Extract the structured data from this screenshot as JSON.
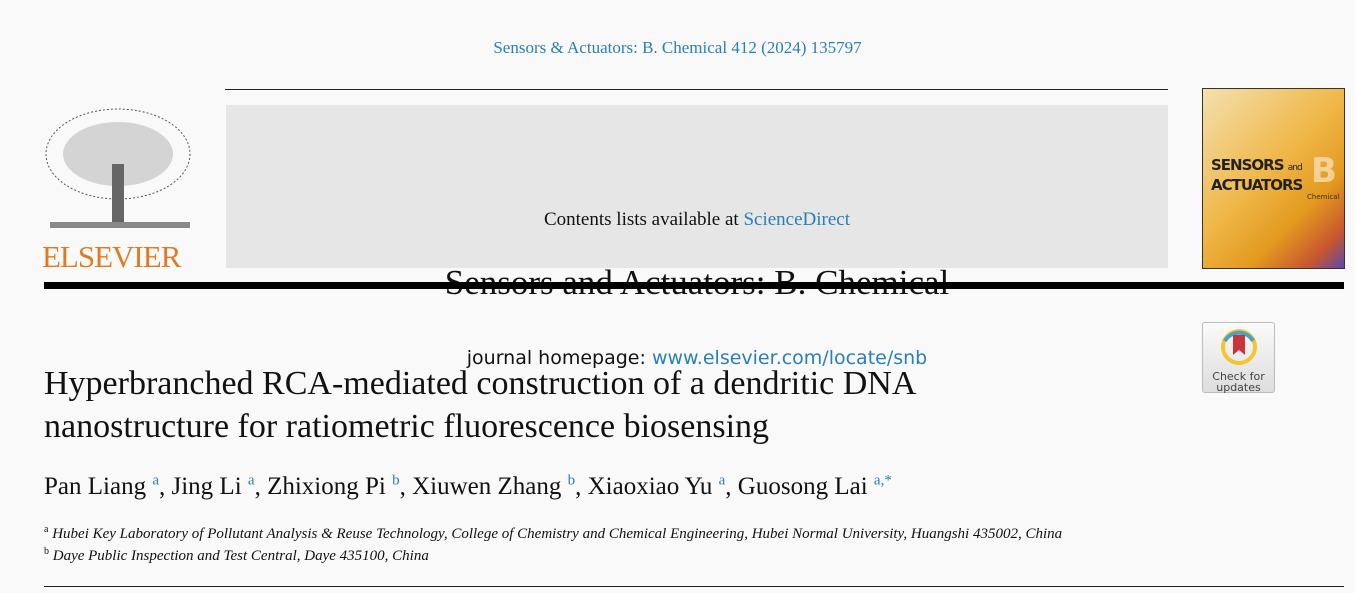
{
  "citation": "Sensors & Actuators: B. Chemical 412 (2024) 135797",
  "publisher_logo": "ELSEVIER",
  "banner": {
    "contents_prefix": "Contents lists available at ",
    "contents_link": "ScienceDirect",
    "journal_name": "Sensors and Actuators: B. Chemical",
    "homepage_prefix": "journal homepage: ",
    "homepage_link": "www.elsevier.com/locate/snb"
  },
  "cover": {
    "line1": "SENSORS",
    "and": "and",
    "line2": "ACTUATORS",
    "letter": "B",
    "sub": "Chemical"
  },
  "crossmark": {
    "line1": "Check for",
    "line2": "updates"
  },
  "title": "Hyperbranched RCA-mediated construction of a dendritic DNA nanostructure for ratiometric fluorescence biosensing",
  "authors": [
    {
      "name": "Pan Liang",
      "sup": "a"
    },
    {
      "name": "Jing Li",
      "sup": "a"
    },
    {
      "name": "Zhixiong Pi",
      "sup": "b"
    },
    {
      "name": "Xiuwen Zhang",
      "sup": "b"
    },
    {
      "name": "Xiaoxiao Yu",
      "sup": "a"
    },
    {
      "name": "Guosong Lai",
      "sup": "a,*"
    }
  ],
  "affiliations": [
    {
      "label": "a",
      "text": "Hubei Key Laboratory of Pollutant Analysis & Reuse Technology, College of Chemistry and Chemical Engineering, Hubei Normal University, Huangshi 435002, China"
    },
    {
      "label": "b",
      "text": "Daye Public Inspection and Test Central, Daye 435100, China"
    }
  ]
}
